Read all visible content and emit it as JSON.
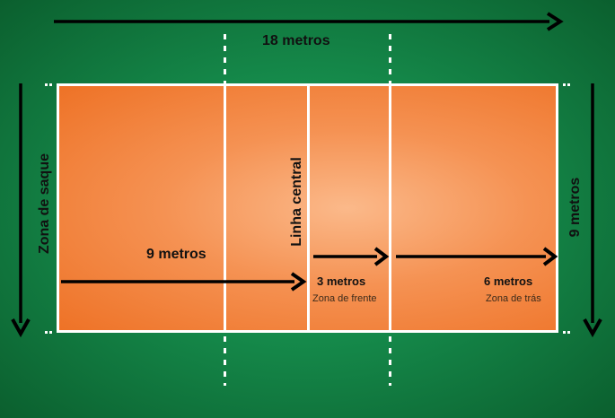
{
  "diagram": {
    "length_label": "18 metros",
    "width_label": "9 metros",
    "service_zone_label": "Zona de saque",
    "center_line_label": "Linha central",
    "half_court_label": "9 metros",
    "front_zone_measure": "3 metros",
    "front_zone_name": "Zona de frente",
    "back_zone_measure": "6 metros",
    "back_zone_name": "Zona de trás"
  },
  "colors": {
    "field_green": "#1a9a55",
    "court_orange": "#f48a48",
    "lines": "#ffffff",
    "arrows": "#000000"
  }
}
